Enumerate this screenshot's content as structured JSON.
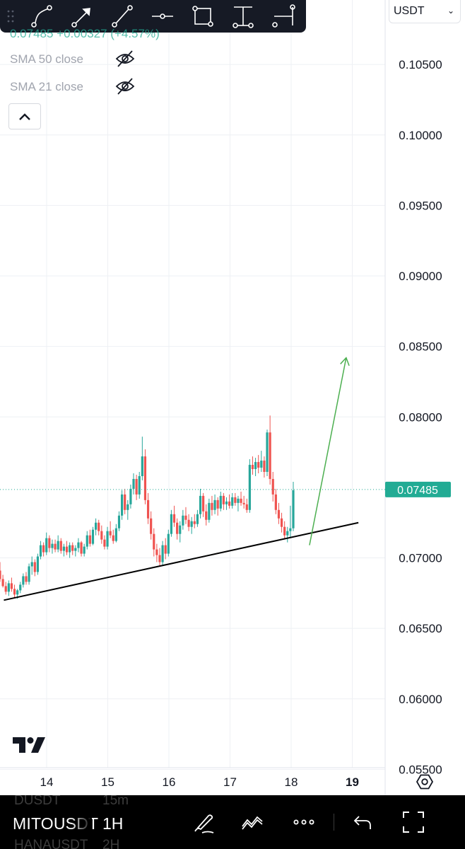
{
  "legend": {
    "price_line": "0.07485 +0.00327 (+4.57%)",
    "indicators": [
      {
        "label": "SMA 50 close"
      },
      {
        "label": "SMA 21 close"
      }
    ]
  },
  "currency": {
    "label": "USDT"
  },
  "price_axis": {
    "ticks": [
      "0.10500",
      "0.10000",
      "0.09500",
      "0.09000",
      "0.08500",
      "0.08000",
      "0.07000",
      "0.06500",
      "0.06000",
      "0.05500"
    ],
    "current_price_label": "0.07485"
  },
  "time_axis": {
    "ticks": [
      "14",
      "15",
      "16",
      "17",
      "18",
      "19"
    ],
    "highlight": "19"
  },
  "colors": {
    "up": "#26a69a",
    "down": "#ef5350",
    "price_badge": "#22ab94",
    "trendline": "#000000",
    "arrow": "#4caf50",
    "toolbar_bg": "#161a25"
  },
  "drawing_toolbar": {
    "tools": [
      "path-tool-icon",
      "arrow-tool-icon",
      "trend-line-tool-icon",
      "horizontal-ray-tool-icon",
      "rectangle-tool-icon",
      "price-range-tool-icon",
      "date-range-tool-icon"
    ]
  },
  "bottom_bar": {
    "symbol": "MITOUSDT",
    "interval": "1H",
    "ghost_top_symbol": "DUSDT",
    "ghost_top_interval": "15m",
    "ghost_bottom_symbol": "HANAUSDT",
    "ghost_bottom_interval": "2H"
  },
  "chart_data": {
    "type": "candlestick",
    "y_range": [
      0.0545,
      0.1085
    ],
    "current_price": 0.07485,
    "support_line": {
      "from": {
        "x": "13.3",
        "y": 0.067
      },
      "to": {
        "x": "19.1",
        "y": 0.0725
      }
    },
    "projection_arrow": {
      "from": {
        "x": "18.3",
        "y": 0.0709
      },
      "to": {
        "x": "18.9",
        "y": 0.0842
      }
    },
    "candles": [
      [
        0.0691,
        0.0697,
        0.0683,
        0.0685
      ],
      [
        0.0685,
        0.0688,
        0.0679,
        0.068
      ],
      [
        0.068,
        0.0683,
        0.0674,
        0.0676
      ],
      [
        0.0676,
        0.0684,
        0.0673,
        0.0682
      ],
      [
        0.0682,
        0.0686,
        0.0676,
        0.0678
      ],
      [
        0.0678,
        0.0681,
        0.0672,
        0.0674
      ],
      [
        0.0674,
        0.0678,
        0.0671,
        0.0677
      ],
      [
        0.0677,
        0.0683,
        0.0675,
        0.0681
      ],
      [
        0.0681,
        0.0689,
        0.0679,
        0.0687
      ],
      [
        0.0687,
        0.069,
        0.0681,
        0.0683
      ],
      [
        0.0683,
        0.0696,
        0.0681,
        0.0694
      ],
      [
        0.0694,
        0.0701,
        0.0688,
        0.0697
      ],
      [
        0.0697,
        0.0699,
        0.0687,
        0.069
      ],
      [
        0.069,
        0.0703,
        0.0688,
        0.0701
      ],
      [
        0.0701,
        0.0712,
        0.0699,
        0.0709
      ],
      [
        0.0709,
        0.0711,
        0.0701,
        0.0704
      ],
      [
        0.0704,
        0.0718,
        0.0702,
        0.0714
      ],
      [
        0.0714,
        0.0716,
        0.0704,
        0.0707
      ],
      [
        0.0707,
        0.0713,
        0.0703,
        0.071
      ],
      [
        0.071,
        0.0713,
        0.0704,
        0.0706
      ],
      [
        0.0706,
        0.0716,
        0.0704,
        0.0712
      ],
      [
        0.0712,
        0.0714,
        0.0703,
        0.0705
      ],
      [
        0.0705,
        0.071,
        0.0701,
        0.0708
      ],
      [
        0.0708,
        0.0712,
        0.0702,
        0.0704
      ],
      [
        0.0704,
        0.0711,
        0.07,
        0.0709
      ],
      [
        0.0709,
        0.0711,
        0.0702,
        0.0705
      ],
      [
        0.0705,
        0.0709,
        0.0701,
        0.0707
      ],
      [
        0.0707,
        0.0714,
        0.0704,
        0.0711
      ],
      [
        0.0711,
        0.0712,
        0.0701,
        0.0703
      ],
      [
        0.0703,
        0.071,
        0.0701,
        0.0708
      ],
      [
        0.0708,
        0.0719,
        0.0706,
        0.0716
      ],
      [
        0.0716,
        0.072,
        0.0708,
        0.071
      ],
      [
        0.071,
        0.0722,
        0.0709,
        0.072
      ],
      [
        0.072,
        0.0728,
        0.0716,
        0.0725
      ],
      [
        0.0725,
        0.0727,
        0.0716,
        0.0719
      ],
      [
        0.0719,
        0.0723,
        0.071,
        0.0713
      ],
      [
        0.0713,
        0.0716,
        0.0706,
        0.0708
      ],
      [
        0.0708,
        0.0722,
        0.0706,
        0.0719
      ],
      [
        0.0719,
        0.0726,
        0.0714,
        0.0716
      ],
      [
        0.0716,
        0.072,
        0.071,
        0.0712
      ],
      [
        0.0712,
        0.0724,
        0.0711,
        0.0721
      ],
      [
        0.0721,
        0.0733,
        0.0719,
        0.073
      ],
      [
        0.073,
        0.0748,
        0.0727,
        0.0745
      ],
      [
        0.0745,
        0.0749,
        0.0731,
        0.0734
      ],
      [
        0.0734,
        0.0741,
        0.0727,
        0.0738
      ],
      [
        0.0738,
        0.0752,
        0.0735,
        0.0749
      ],
      [
        0.0749,
        0.076,
        0.0745,
        0.0756
      ],
      [
        0.0756,
        0.0759,
        0.0741,
        0.0745
      ],
      [
        0.0745,
        0.0761,
        0.0742,
        0.0758
      ],
      [
        0.0758,
        0.0786,
        0.0755,
        0.0772
      ],
      [
        0.0772,
        0.0777,
        0.0738,
        0.0741
      ],
      [
        0.0741,
        0.0746,
        0.0724,
        0.0728
      ],
      [
        0.0728,
        0.0733,
        0.0713,
        0.0717
      ],
      [
        0.0717,
        0.0721,
        0.0701,
        0.0706
      ],
      [
        0.0706,
        0.071,
        0.0697,
        0.0702
      ],
      [
        0.0702,
        0.0707,
        0.0694,
        0.0697
      ],
      [
        0.0697,
        0.0712,
        0.0695,
        0.0709
      ],
      [
        0.0709,
        0.0714,
        0.0699,
        0.0703
      ],
      [
        0.0703,
        0.072,
        0.0701,
        0.0717
      ],
      [
        0.0717,
        0.0734,
        0.0715,
        0.0731
      ],
      [
        0.0731,
        0.0737,
        0.0722,
        0.0725
      ],
      [
        0.0725,
        0.0728,
        0.0713,
        0.0717
      ],
      [
        0.0717,
        0.0726,
        0.0711,
        0.0723
      ],
      [
        0.0723,
        0.0734,
        0.072,
        0.073
      ],
      [
        0.073,
        0.0736,
        0.0724,
        0.0727
      ],
      [
        0.0727,
        0.0731,
        0.0719,
        0.0722
      ],
      [
        0.0722,
        0.0729,
        0.0717,
        0.0726
      ],
      [
        0.0726,
        0.0731,
        0.0721,
        0.0724
      ],
      [
        0.0724,
        0.0734,
        0.0722,
        0.0731
      ],
      [
        0.0731,
        0.0749,
        0.0728,
        0.0744
      ],
      [
        0.0744,
        0.0746,
        0.0729,
        0.0733
      ],
      [
        0.0733,
        0.0738,
        0.0723,
        0.0727
      ],
      [
        0.0727,
        0.0742,
        0.0725,
        0.0739
      ],
      [
        0.0739,
        0.0744,
        0.073,
        0.0734
      ],
      [
        0.0734,
        0.0745,
        0.0731,
        0.0741
      ],
      [
        0.0741,
        0.0743,
        0.073,
        0.0735
      ],
      [
        0.0735,
        0.0747,
        0.0733,
        0.0744
      ],
      [
        0.0744,
        0.0746,
        0.0734,
        0.0738
      ],
      [
        0.0738,
        0.0743,
        0.0734,
        0.074
      ],
      [
        0.074,
        0.0745,
        0.0735,
        0.0737
      ],
      [
        0.0737,
        0.0746,
        0.0735,
        0.0743
      ],
      [
        0.0743,
        0.0746,
        0.0737,
        0.0739
      ],
      [
        0.0739,
        0.0744,
        0.0733,
        0.0742
      ],
      [
        0.0742,
        0.0747,
        0.0737,
        0.0739
      ],
      [
        0.0739,
        0.0744,
        0.0735,
        0.0738
      ],
      [
        0.0738,
        0.0742,
        0.0732,
        0.0734
      ],
      [
        0.0734,
        0.077,
        0.0732,
        0.0766
      ],
      [
        0.0766,
        0.0772,
        0.0759,
        0.0763
      ],
      [
        0.0763,
        0.0771,
        0.0758,
        0.0768
      ],
      [
        0.0768,
        0.0773,
        0.076,
        0.0764
      ],
      [
        0.0764,
        0.0776,
        0.0761,
        0.0769
      ],
      [
        0.0769,
        0.0772,
        0.0757,
        0.0761
      ],
      [
        0.0761,
        0.0791,
        0.0758,
        0.0789
      ],
      [
        0.0789,
        0.0801,
        0.0752,
        0.0756
      ],
      [
        0.0756,
        0.0761,
        0.074,
        0.0745
      ],
      [
        0.0745,
        0.0749,
        0.0731,
        0.0734
      ],
      [
        0.0734,
        0.0739,
        0.0724,
        0.0728
      ],
      [
        0.0728,
        0.0732,
        0.0718,
        0.0722
      ],
      [
        0.0722,
        0.0726,
        0.0713,
        0.0716
      ],
      [
        0.0716,
        0.0722,
        0.0711,
        0.0719
      ],
      [
        0.0719,
        0.0737,
        0.0714,
        0.0721
      ],
      [
        0.0721,
        0.0754,
        0.0719,
        0.0748
      ]
    ]
  }
}
